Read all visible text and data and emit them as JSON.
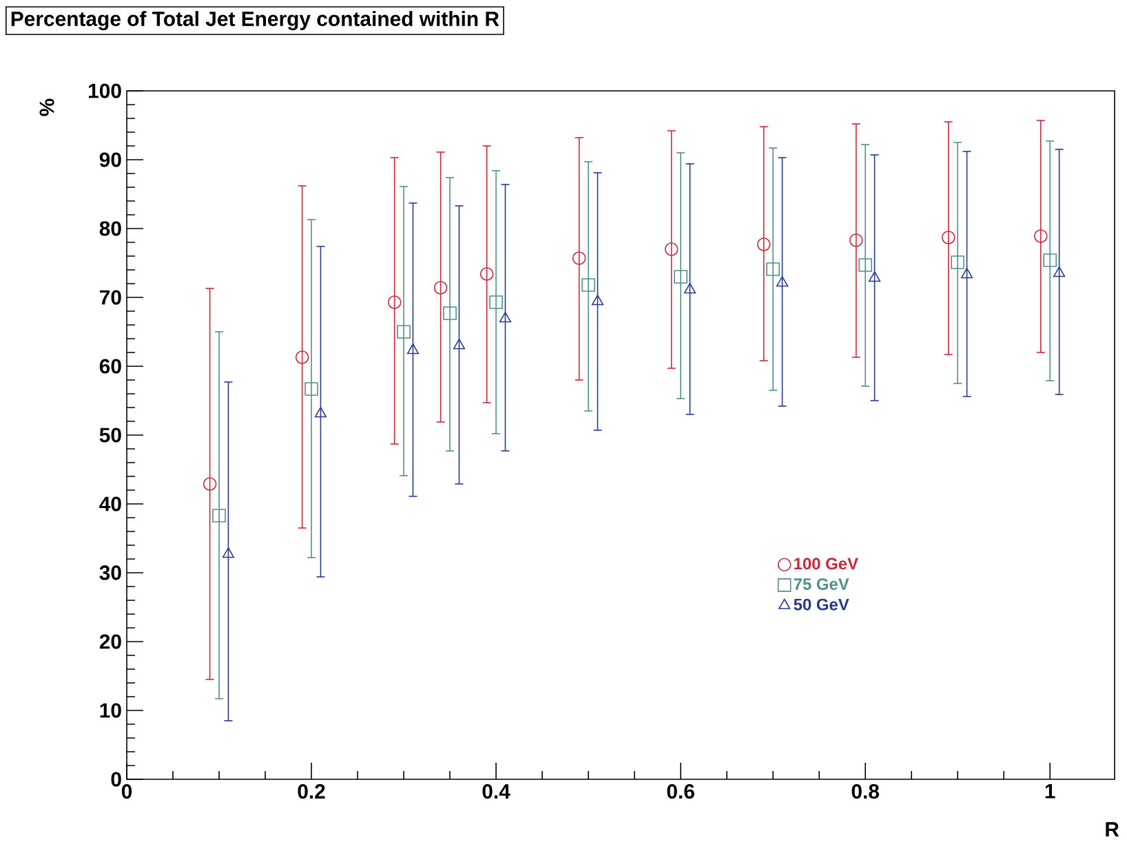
{
  "chart_data": {
    "type": "scatter",
    "title": "Percentage of Total Jet Energy contained within R",
    "xlabel": "R",
    "ylabel": "%",
    "xlim": [
      0,
      1.07
    ],
    "xticks": [
      0,
      0.2,
      0.4,
      0.6,
      0.8,
      1
    ],
    "ylim": [
      0,
      100
    ],
    "yticks": [
      0,
      10,
      20,
      30,
      40,
      50,
      60,
      70,
      80,
      90,
      100
    ],
    "grid": false,
    "legend": "right",
    "series": [
      {
        "name": "100 GeV",
        "color": "#c8283a",
        "marker": "circle",
        "x": [
          0.09,
          0.19,
          0.29,
          0.34,
          0.39,
          0.49,
          0.59,
          0.69,
          0.79,
          0.89,
          0.99
        ],
        "values": [
          42.9,
          61.3,
          69.3,
          71.4,
          73.4,
          75.7,
          77,
          77.7,
          78.3,
          78.7,
          78.9
        ],
        "errors": [
          [
            14.5,
            71.3
          ],
          [
            36.5,
            86.2
          ],
          [
            48.7,
            90.3
          ],
          [
            51.9,
            91.1
          ],
          [
            54.7,
            92
          ],
          [
            58,
            93.2
          ],
          [
            59.7,
            94.2
          ],
          [
            60.8,
            94.8
          ],
          [
            61.3,
            95.2
          ],
          [
            61.7,
            95.5
          ],
          [
            62,
            95.7
          ]
        ]
      },
      {
        "name": "75 GeV",
        "color": "#4f9088",
        "marker": "square",
        "x": [
          0.1,
          0.2,
          0.3,
          0.35,
          0.4,
          0.5,
          0.6,
          0.7,
          0.8,
          0.9,
          1.0
        ],
        "values": [
          38.3,
          56.7,
          65,
          67.7,
          69.3,
          71.8,
          73,
          74.1,
          74.7,
          75.1,
          75.4
        ],
        "errors": [
          [
            11.7,
            65
          ],
          [
            32.2,
            81.3
          ],
          [
            44.1,
            86.1
          ],
          [
            47.7,
            87.4
          ],
          [
            50.2,
            88.4
          ],
          [
            53.5,
            89.7
          ],
          [
            55.3,
            91
          ],
          [
            56.5,
            91.7
          ],
          [
            57.1,
            92.2
          ],
          [
            57.5,
            92.5
          ],
          [
            57.9,
            92.7
          ]
        ]
      },
      {
        "name": "50 GeV",
        "color": "#27398c",
        "marker": "triangle",
        "x": [
          0.11,
          0.21,
          0.31,
          0.36,
          0.41,
          0.51,
          0.61,
          0.71,
          0.81,
          0.91,
          1.01
        ],
        "values": [
          32.7,
          53.1,
          62.3,
          63,
          66.9,
          69.4,
          71.1,
          72.1,
          72.8,
          73.3,
          73.5
        ],
        "errors": [
          [
            8.5,
            57.7
          ],
          [
            29.4,
            77.4
          ],
          [
            41.1,
            83.7
          ],
          [
            42.9,
            83.3
          ],
          [
            47.7,
            86.4
          ],
          [
            50.7,
            88.1
          ],
          [
            53,
            89.4
          ],
          [
            54.2,
            90.3
          ],
          [
            55,
            90.7
          ],
          [
            55.6,
            91.2
          ],
          [
            55.9,
            91.5
          ]
        ]
      }
    ]
  }
}
